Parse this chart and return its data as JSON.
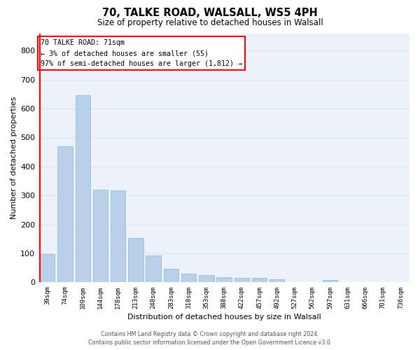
{
  "title1": "70, TALKE ROAD, WALSALL, WS5 4PH",
  "title2": "Size of property relative to detached houses in Walsall",
  "xlabel": "Distribution of detached houses by size in Walsall",
  "ylabel": "Number of detached properties",
  "bar_labels": [
    "39sqm",
    "74sqm",
    "109sqm",
    "144sqm",
    "178sqm",
    "213sqm",
    "248sqm",
    "283sqm",
    "318sqm",
    "353sqm",
    "388sqm",
    "422sqm",
    "457sqm",
    "492sqm",
    "527sqm",
    "562sqm",
    "597sqm",
    "631sqm",
    "666sqm",
    "701sqm",
    "736sqm"
  ],
  "bar_values": [
    97,
    470,
    645,
    320,
    318,
    153,
    92,
    47,
    30,
    25,
    17,
    16,
    16,
    10,
    0,
    0,
    8,
    0,
    0,
    0,
    0
  ],
  "bar_color": "#b8d0e8",
  "bar_edge_color": "#90b4d4",
  "grid_color": "#d8e4f0",
  "background_color": "#edf2fa",
  "red_line_bar_index": 0,
  "annotation_text": "70 TALKE ROAD: 71sqm\n← 3% of detached houses are smaller (55)\n97% of semi-detached houses are larger (1,812) →",
  "annotation_box_color": "white",
  "annotation_border_color": "red",
  "ylim": [
    0,
    860
  ],
  "yticks": [
    0,
    100,
    200,
    300,
    400,
    500,
    600,
    700,
    800
  ],
  "footer_line1": "Contains HM Land Registry data © Crown copyright and database right 2024.",
  "footer_line2": "Contains public sector information licensed under the Open Government Licence v3.0."
}
